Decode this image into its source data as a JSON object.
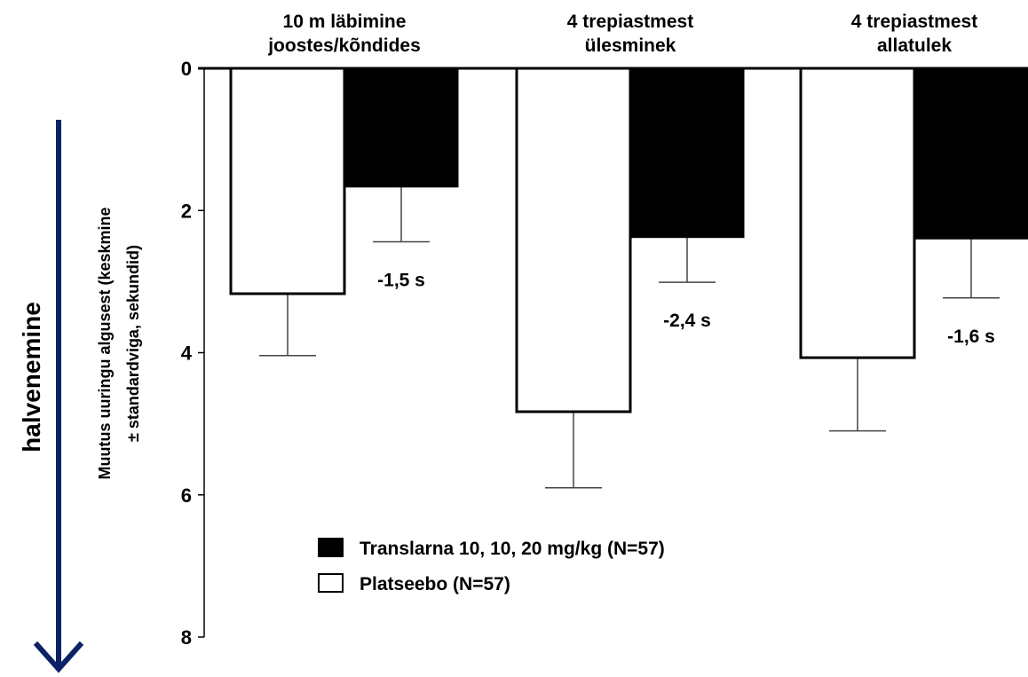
{
  "chart_data": {
    "type": "bar",
    "categories": [
      [
        "10 m läbimine",
        "joostes/kõndides"
      ],
      [
        "4 trepiastmest",
        "ülesminek"
      ],
      [
        "4 trepiastmest",
        "allatulek"
      ]
    ],
    "series": [
      {
        "name": "Platseebo (N=57)",
        "values": [
          3.17,
          4.83,
          4.07
        ],
        "error": [
          0.87,
          1.07,
          1.03
        ],
        "color": "#ffffff"
      },
      {
        "name": "Translarna 10, 10, 20 mg/kg (N=57)",
        "values": [
          1.67,
          2.38,
          2.4
        ],
        "error": [
          0.77,
          0.63,
          0.83
        ],
        "color": "#000000"
      }
    ],
    "annotations": [
      "-1,5 s",
      "-2,4 s",
      "-1,6 s"
    ],
    "ylabel": [
      "Muutus uuringu algusest (keskmine",
      "± standardviga, sekundid)"
    ],
    "ylim": [
      0,
      8
    ],
    "y_inverted": true,
    "yticks": [
      "0",
      "2",
      "4",
      "6",
      "8"
    ],
    "legend": [
      "Translarna 10, 10, 20 mg/kg (N=57)",
      "Platseebo (N=57)"
    ],
    "legend_placement": "lower-left",
    "side_label": "halvenemine",
    "arrow_color": "#0b2265",
    "grid": false
  }
}
